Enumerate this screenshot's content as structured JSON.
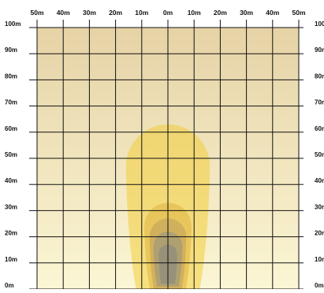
{
  "chart_data": {
    "type": "heatmap",
    "title": "",
    "xlabel": "",
    "ylabel": "",
    "x_ticks": [
      "50m",
      "40m",
      "30m",
      "20m",
      "10m",
      "0m",
      "10m",
      "20m",
      "30m",
      "40m",
      "50m"
    ],
    "y_ticks": [
      "0m",
      "10m",
      "20m",
      "30m",
      "40m",
      "50m",
      "60m",
      "70m",
      "80m",
      "90m",
      "100m"
    ],
    "x_range": [
      -50,
      50
    ],
    "y_range": [
      0,
      100
    ],
    "grid": true,
    "grid_spacing": 10,
    "background_gradient": {
      "top_color": "#e6d3a6",
      "bottom_color": "#fbf6d4"
    },
    "light_pattern": {
      "description": "isolux contours of a single luminaire beam, centered on x=0",
      "contours": [
        {
          "level": 1,
          "color": "#f3cd3b",
          "opacity": 0.55,
          "x_min": -16,
          "x_max": 16,
          "y_min": 0,
          "y_max": 63
        },
        {
          "level": 2,
          "color": "#e2ba4b",
          "opacity": 0.65,
          "x_min": -9,
          "x_max": 9,
          "y_min": 0,
          "y_max": 33
        },
        {
          "level": 3,
          "color": "#c9a85d",
          "opacity": 0.75,
          "x_min": -7,
          "x_max": 7,
          "y_min": 0,
          "y_max": 27
        },
        {
          "level": 4,
          "color": "#a99e74",
          "opacity": 0.85,
          "x_min": -5.5,
          "x_max": 5.5,
          "y_min": 1,
          "y_max": 22
        },
        {
          "level": 5,
          "color": "#958f7b",
          "opacity": 0.9,
          "x_min": -3.5,
          "x_max": 3.5,
          "y_min": 2,
          "y_max": 17
        }
      ]
    }
  }
}
